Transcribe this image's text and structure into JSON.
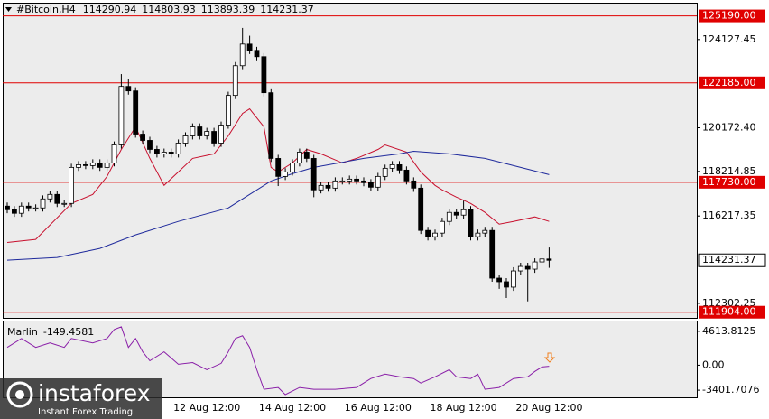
{
  "chart_data": [
    {
      "type": "candlestick",
      "title": "#Bitcoin,H4",
      "categories": [
        null,
        null,
        null,
        null,
        null,
        null,
        null,
        null,
        null,
        null,
        null,
        null,
        null,
        null,
        null,
        null,
        null,
        null,
        null,
        null,
        null,
        null,
        null,
        null,
        null,
        null,
        null,
        null,
        "12 Aug 12:00",
        null,
        null,
        null,
        null,
        null,
        null,
        null,
        null,
        null,
        null,
        null,
        "14 Aug 12:00",
        null,
        null,
        null,
        null,
        null,
        null,
        null,
        null,
        null,
        null,
        null,
        "16 Aug 12:00",
        null,
        null,
        null,
        null,
        null,
        null,
        null,
        null,
        null,
        null,
        null,
        "18 Aug 12:00",
        null,
        null,
        null,
        null,
        null,
        null,
        null,
        null,
        null,
        null,
        null,
        "20 Aug 12:00"
      ],
      "open": [
        116660,
        116498,
        116338,
        116660,
        116579,
        116579,
        116983,
        117185,
        116781,
        116781,
        118396,
        118517,
        118477,
        118598,
        118396,
        118598,
        119405,
        122028,
        121826,
        119889,
        119607,
        119203,
        119001,
        119082,
        119001,
        119486,
        119808,
        120212,
        119808,
        120010,
        119486,
        120293,
        121625,
        122956,
        123925,
        123643,
        123360,
        121746,
        118799,
        117992,
        118194,
        118598,
        119082,
        118799,
        117387,
        117588,
        117467,
        117790,
        117790,
        117871,
        117790,
        117710,
        117508,
        117992,
        118356,
        118517,
        118275,
        117790,
        117467,
        115570,
        115288,
        115449,
        115974,
        116378,
        116257,
        116498,
        115288,
        115449,
        115570,
        113431,
        113270,
        113028,
        113754,
        113956,
        113835,
        114158,
        114290.94
      ],
      "high": [
        116820,
        116660,
        116820,
        116820,
        116740,
        117140,
        117350,
        117350,
        116940,
        118560,
        118680,
        118680,
        118760,
        118760,
        118760,
        119560,
        122580,
        122380,
        121990,
        120050,
        119770,
        119360,
        119240,
        119240,
        119650,
        119970,
        120370,
        120370,
        120170,
        120170,
        120450,
        121790,
        123120,
        124650,
        124300,
        123800,
        123520,
        121900,
        118960,
        118360,
        118760,
        119240,
        119240,
        118960,
        117750,
        117750,
        117950,
        117950,
        118030,
        118030,
        117950,
        117870,
        118150,
        118520,
        118680,
        118680,
        118440,
        117950,
        117630,
        115730,
        115610,
        116140,
        116540,
        116540,
        116900,
        116660,
        115610,
        115730,
        115730,
        113590,
        113430,
        113920,
        114120,
        114120,
        114320,
        114520,
        114803.93
      ],
      "low": [
        116340,
        116180,
        116180,
        116420,
        116420,
        116420,
        116820,
        116620,
        116620,
        116620,
        118240,
        118320,
        118320,
        118240,
        118240,
        118440,
        119240,
        121660,
        119730,
        119440,
        119040,
        118840,
        118840,
        118840,
        118840,
        119320,
        119650,
        119650,
        119650,
        119320,
        119320,
        120130,
        121460,
        122800,
        123480,
        123200,
        121580,
        118640,
        117560,
        117830,
        118030,
        118440,
        118640,
        117060,
        117230,
        117310,
        117310,
        117630,
        117630,
        117630,
        117550,
        117350,
        117350,
        117830,
        118200,
        118110,
        117630,
        117300,
        115410,
        115120,
        115120,
        115290,
        115810,
        116090,
        116090,
        115120,
        115120,
        115290,
        113270,
        112950,
        112540,
        112860,
        113590,
        112390,
        113670,
        114000,
        113893.39
      ],
      "close": [
        116498,
        116338,
        116660,
        116579,
        116579,
        116983,
        117185,
        116781,
        116781,
        118396,
        118517,
        118477,
        118598,
        118396,
        118598,
        119405,
        122028,
        121826,
        119889,
        119607,
        119203,
        119001,
        119082,
        119001,
        119486,
        119808,
        120212,
        119808,
        120010,
        119486,
        120293,
        121625,
        122956,
        123925,
        123643,
        123360,
        121746,
        118799,
        117992,
        118194,
        118598,
        119082,
        118799,
        117387,
        117588,
        117467,
        117790,
        117790,
        117871,
        117790,
        117710,
        117508,
        117992,
        118356,
        118517,
        118275,
        117790,
        117467,
        115570,
        115288,
        115449,
        115974,
        116378,
        116257,
        116498,
        115288,
        115449,
        115570,
        113431,
        113270,
        113028,
        113754,
        113956,
        113835,
        114158,
        114290.94,
        114231.37
      ],
      "up_color": "#ffffff",
      "down_color": "#000000",
      "lines": [
        {
          "color": "#c8102e",
          "x": [
            0,
            4,
            9,
            12,
            14,
            16,
            18,
            20,
            22,
            24,
            26,
            29,
            31,
            33,
            34,
            36,
            37,
            38,
            40,
            42,
            44,
            47,
            49,
            52,
            53,
            56,
            58,
            60,
            61,
            63,
            65,
            67,
            69,
            71,
            74,
            76
          ],
          "values": [
            115032,
            115167,
            116781,
            117185,
            117992,
            119203,
            120212,
            118799,
            117588,
            118194,
            118799,
            119001,
            119808,
            120817,
            121019,
            120212,
            118396,
            118194,
            118598,
            119203,
            119001,
            118598,
            118799,
            119203,
            119405,
            119082,
            118194,
            117588,
            117387,
            117064,
            116781,
            116378,
            115853,
            115974,
            116176,
            115974
          ]
        },
        {
          "color": "#1f2a9c",
          "x": [
            0,
            7,
            13,
            18,
            24,
            31,
            34,
            37,
            40,
            43,
            50,
            55,
            57,
            62,
            67,
            72,
            76
          ],
          "values": [
            114239,
            114360,
            114763,
            115369,
            115974,
            116579,
            117185,
            117790,
            118113,
            118396,
            118799,
            119001,
            119122,
            119001,
            118799,
            118396,
            118073
          ]
        }
      ],
      "levels": [
        {
          "value": 125190,
          "label": "125190.00"
        },
        {
          "value": 122185,
          "label": "122185.00"
        },
        {
          "value": 117730,
          "label": "117730.00"
        },
        {
          "value": 111904,
          "label": "111904.00"
        }
      ],
      "level_color": "#e00000",
      "ylim": [
        111650,
        125740
      ],
      "yticks": [
        124127.45,
        {
          "value": 120172.4,
          "label": "120172.40"
        },
        118214.85,
        116217.35,
        112302.25
      ]
    },
    {
      "type": "line",
      "title": "Marlin",
      "series": [
        {
          "color": "#8a1fa8",
          "x": [
            0,
            2,
            4,
            6,
            8,
            9,
            12,
            14,
            15,
            16,
            17,
            18,
            19,
            20,
            22,
            24,
            26,
            28,
            30,
            31,
            32,
            33,
            34,
            35,
            36,
            38,
            39,
            41,
            43,
            46,
            49,
            51,
            53,
            55,
            57,
            58,
            60,
            62,
            63,
            65,
            66,
            67,
            69,
            71,
            73,
            74,
            75,
            76
          ],
          "values": [
            2428,
            3643,
            2428,
            3036,
            2428,
            3643,
            3036,
            3643,
            4857,
            5221,
            2428,
            3643,
            1821,
            607,
            1821,
            121,
            364,
            -607,
            243,
            1821,
            3643,
            4007,
            2428,
            -607,
            -3278,
            -3036,
            -4007,
            -3036,
            -3278,
            -3278,
            -3036,
            -1821,
            -1214,
            -1578,
            -1821,
            -2428,
            -1578,
            -607,
            -1578,
            -1821,
            -1214,
            -3278,
            -3036,
            -1821,
            -1578,
            -850,
            -243,
            -149.4581
          ]
        }
      ],
      "ylim": [
        -4373,
        5949
      ],
      "yticks": [
        4613.8125,
        {
          "value": 0,
          "label": "0.00"
        },
        -3401.7076
      ]
    }
  ],
  "logo": {
    "name": "instaforex",
    "tagline": "Instant Forex Trading"
  }
}
